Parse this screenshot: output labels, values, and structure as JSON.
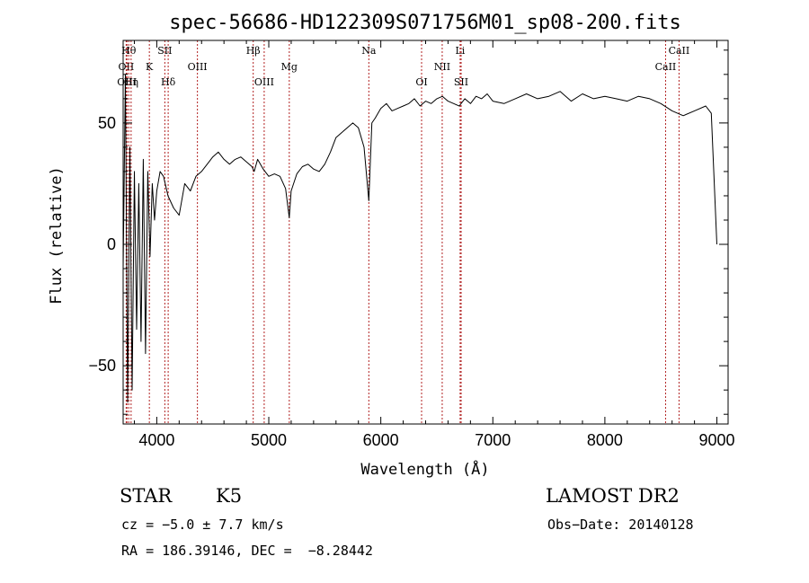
{
  "chart_data": {
    "type": "line",
    "title": "spec-56686-HD122309S071756M01_sp08-200.fits",
    "xlabel": "Wavelength (Å)",
    "ylabel": "Flux (relative)",
    "xlim": [
      3700,
      9100
    ],
    "ylim": [
      -74,
      84
    ],
    "xticks": [
      4000,
      5000,
      6000,
      7000,
      8000,
      9000
    ],
    "yticks": [
      -50,
      0,
      50
    ],
    "grid": false,
    "series": [
      {
        "x": [
          3700,
          3720,
          3740,
          3760,
          3780,
          3800,
          3820,
          3840,
          3860,
          3880,
          3900,
          3920,
          3940,
          3960,
          3980,
          4000,
          4030,
          4060,
          4100,
          4150,
          4200,
          4250,
          4300,
          4350,
          4400,
          4450,
          4500,
          4550,
          4600,
          4650,
          4700,
          4750,
          4800,
          4850,
          4870,
          4900,
          4950,
          5000,
          5050,
          5100,
          5150,
          5183,
          5200,
          5250,
          5300,
          5350,
          5400,
          5450,
          5500,
          5550,
          5600,
          5650,
          5700,
          5750,
          5800,
          5850,
          5893,
          5920,
          5950,
          6000,
          6050,
          6100,
          6150,
          6200,
          6250,
          6300,
          6350,
          6400,
          6450,
          6500,
          6550,
          6600,
          6650,
          6700,
          6750,
          6800,
          6850,
          6900,
          6950,
          7000,
          7100,
          7200,
          7300,
          7400,
          7500,
          7600,
          7700,
          7800,
          7900,
          8000,
          8100,
          8200,
          8300,
          8400,
          8500,
          8600,
          8700,
          8800,
          8900,
          8950,
          9000
        ],
        "y": [
          -10,
          70,
          -65,
          40,
          -60,
          30,
          -35,
          25,
          -40,
          35,
          -45,
          30,
          -5,
          25,
          10,
          22,
          30,
          28,
          20,
          15,
          12,
          25,
          22,
          28,
          30,
          33,
          36,
          38,
          35,
          33,
          35,
          36,
          34,
          32,
          30,
          35,
          31,
          28,
          29,
          28,
          23,
          11,
          22,
          29,
          32,
          33,
          31,
          30,
          33,
          38,
          44,
          46,
          48,
          50,
          48,
          40,
          18,
          50,
          52,
          56,
          58,
          55,
          56,
          57,
          58,
          60,
          57,
          59,
          58,
          60,
          61,
          59,
          58,
          57,
          60,
          58,
          61,
          60,
          62,
          59,
          58,
          60,
          62,
          60,
          61,
          63,
          59,
          62,
          60,
          61,
          60,
          59,
          61,
          60,
          58,
          55,
          53,
          55,
          57,
          54,
          0
        ]
      }
    ],
    "lines": [
      {
        "x": 3727,
        "label": "OII",
        "row": 1
      },
      {
        "x": 3734,
        "label": "OIII",
        "row": 2
      },
      {
        "x": 3750,
        "label": "Hθ",
        "row": 0
      },
      {
        "x": 3771,
        "label": "Hη",
        "row": 2
      },
      {
        "x": 3934,
        "label": "K",
        "row": 1
      },
      {
        "x": 4072,
        "label": "SII",
        "row": 0
      },
      {
        "x": 4102,
        "label": "Hδ",
        "row": 2
      },
      {
        "x": 4363,
        "label": "OIII",
        "row": 1
      },
      {
        "x": 4861,
        "label": "Hβ",
        "row": 0
      },
      {
        "x": 4959,
        "label": "OIII",
        "row": 2
      },
      {
        "x": 5183,
        "label": "Mg",
        "row": 1
      },
      {
        "x": 5893,
        "label": "Na",
        "row": 0
      },
      {
        "x": 6364,
        "label": "OI",
        "row": 2
      },
      {
        "x": 6548,
        "label": "NII",
        "row": 1
      },
      {
        "x": 6708,
        "label": "Li",
        "row": 0
      },
      {
        "x": 6717,
        "label": "SII",
        "row": 2
      },
      {
        "x": 8542,
        "label": "CaII",
        "row": 1
      },
      {
        "x": 8662,
        "label": "CaII",
        "row": 0
      }
    ]
  },
  "info": {
    "object_type": "STAR",
    "subclass": "K5",
    "redshift": "cz = −5.0 ± 7.7 km/s",
    "coords": "RA = 186.39146, DEC =  −8.28442",
    "survey": "LAMOST DR2",
    "obs_date": "Obs−Date: 20140128"
  },
  "colors": {
    "axis": "#000000",
    "spectrum": "#000000",
    "line_marker": "#b22222"
  }
}
